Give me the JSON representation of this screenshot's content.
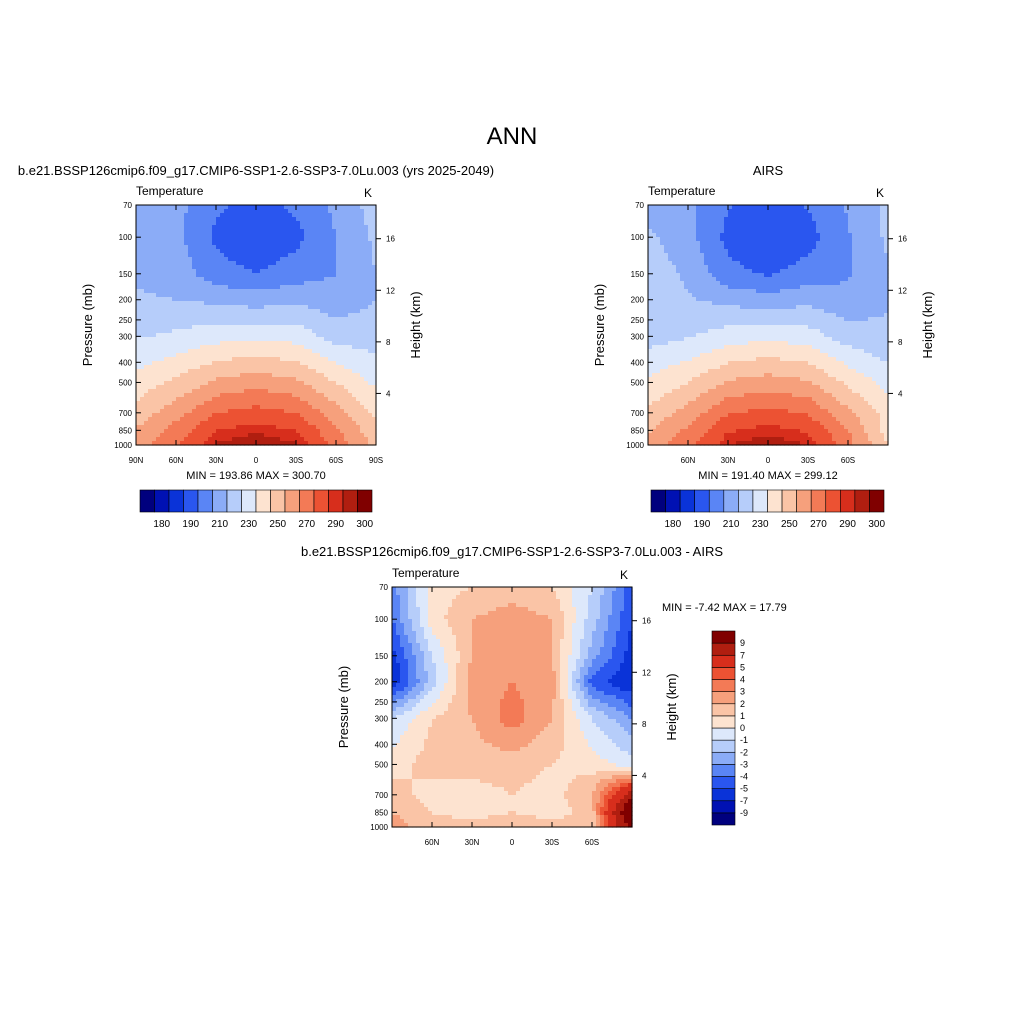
{
  "page": {
    "title": "ANN"
  },
  "palettes": {
    "abs": [
      "#00007e",
      "#0011b3",
      "#0a33d8",
      "#2a56ef",
      "#5a85f5",
      "#8bacf7",
      "#b6cdfa",
      "#dde8fb",
      "#fde3d0",
      "#fac4a6",
      "#f6a07c",
      "#f37a56",
      "#ec5233",
      "#d72e1c",
      "#b01e10",
      "#800000"
    ],
    "diff": [
      "#00007e",
      "#0011b3",
      "#0a33d8",
      "#2a56ef",
      "#5a85f5",
      "#8bacf7",
      "#b6cdfa",
      "#dde8fb",
      "#fde3d0",
      "#fac4a6",
      "#f6a07c",
      "#f37a56",
      "#ec5233",
      "#d72e1c",
      "#b01e10",
      "#800000"
    ]
  },
  "panels": [
    {
      "id": "model",
      "title": "b.e21.BSSP126cmip6.f09_g17.CMIP6-SSP1-2.6-SSP3-7.0Lu.003 (yrs 2025-2049)",
      "var_label": "Temperature",
      "units": "K",
      "ylabel": "Pressure (mb)",
      "y2label": "Height (km)",
      "stats": "MIN = 193.86  MAX = 300.70",
      "x_ticks": [
        "90N",
        "60N",
        "30N",
        "0",
        "30S",
        "60S",
        "90S"
      ],
      "y_ticks": [
        "70",
        "100",
        "150",
        "200",
        "250",
        "300",
        "400",
        "500",
        "700",
        "850",
        "1000"
      ],
      "y2_ticks": [
        "16",
        "12",
        "8",
        "4"
      ],
      "cb_labels": [
        "180",
        "190",
        "210",
        "230",
        "250",
        "270",
        "290",
        "300"
      ]
    },
    {
      "id": "obs",
      "title": "AIRS",
      "var_label": "Temperature",
      "units": "K",
      "ylabel": "Pressure (mb)",
      "y2label": "Height (km)",
      "stats": "MIN = 191.40  MAX = 299.12",
      "x_ticks": [
        "60N",
        "30N",
        "0",
        "30S",
        "60S"
      ],
      "y_ticks": [
        "70",
        "100",
        "150",
        "200",
        "250",
        "300",
        "400",
        "500",
        "700",
        "850",
        "1000"
      ],
      "y2_ticks": [
        "16",
        "12",
        "8",
        "4"
      ],
      "cb_labels": [
        "180",
        "190",
        "210",
        "230",
        "250",
        "270",
        "290",
        "300"
      ]
    },
    {
      "id": "diff",
      "title": "b.e21.BSSP126cmip6.f09_g17.CMIP6-SSP1-2.6-SSP3-7.0Lu.003 - AIRS",
      "var_label": "Temperature",
      "units": "K",
      "ylabel": "Pressure (mb)",
      "y2label": "Height (km)",
      "stats": "MIN =  -7.42  MAX =  17.79",
      "x_ticks": [
        "60N",
        "30N",
        "0",
        "30S",
        "60S"
      ],
      "y_ticks": [
        "70",
        "100",
        "150",
        "200",
        "250",
        "300",
        "400",
        "500",
        "700",
        "850",
        "1000"
      ],
      "y2_ticks": [
        "16",
        "12",
        "8",
        "4"
      ],
      "cb_labels": [
        "9",
        "7",
        "5",
        "4",
        "3",
        "2",
        "1",
        "0",
        "-1",
        "-2",
        "-3",
        "-4",
        "-5",
        "-7",
        "-9"
      ]
    }
  ],
  "chart_data": [
    {
      "type": "heatmap",
      "title": "b.e21.BSSP126cmip6.f09_g17.CMIP6-SSP1-2.6-SSP3-7.0Lu.003 (yrs 2025-2049)",
      "subtitle": "Temperature",
      "units": "K",
      "xlabel": "",
      "ylabel": "Pressure (mb)",
      "y2label": "Height (km)",
      "xlim": [
        "90N",
        "90S"
      ],
      "ylim": [
        1000,
        70
      ],
      "y_scale": "log",
      "levels": [
        180,
        185,
        190,
        200,
        210,
        220,
        230,
        240,
        250,
        260,
        270,
        280,
        290,
        295,
        300
      ],
      "min": 193.86,
      "max": 300.7,
      "field": {
        "lat": [
          90,
          60,
          30,
          0,
          -30,
          -60,
          -90
        ],
        "plev": [
          70,
          100,
          150,
          200,
          300,
          500,
          700,
          850,
          1000
        ],
        "temp": [
          [
            218,
            213,
            202,
            196,
            202,
            212,
            225
          ],
          [
            218,
            213,
            198,
            192,
            197,
            210,
            222
          ],
          [
            219,
            216,
            204,
            200,
            205,
            210,
            220
          ],
          [
            221,
            220,
            218,
            215,
            218,
            214,
            220
          ],
          [
            229,
            232,
            236,
            238,
            236,
            226,
            225
          ],
          [
            244,
            252,
            262,
            266,
            262,
            250,
            238
          ],
          [
            254,
            266,
            280,
            284,
            280,
            264,
            248
          ],
          [
            261,
            274,
            290,
            294,
            290,
            272,
            253
          ],
          [
            265,
            280,
            296,
            300,
            296,
            276,
            257
          ]
        ]
      }
    },
    {
      "type": "heatmap",
      "title": "AIRS",
      "subtitle": "Temperature",
      "units": "K",
      "xlabel": "",
      "ylabel": "Pressure (mb)",
      "y2label": "Height (km)",
      "xlim": [
        "90N",
        "90S"
      ],
      "ylim": [
        1000,
        70
      ],
      "y_scale": "log",
      "levels": [
        180,
        185,
        190,
        200,
        210,
        220,
        230,
        240,
        250,
        260,
        270,
        280,
        290,
        295,
        300
      ],
      "min": 191.4,
      "max": 299.12,
      "field": {
        "lat": [
          90,
          60,
          30,
          0,
          -30,
          -60,
          -90
        ],
        "plev": [
          70,
          100,
          150,
          200,
          300,
          500,
          700,
          850,
          1000
        ],
        "temp": [
          [
            216,
            212,
            201,
            195,
            201,
            211,
            222
          ],
          [
            222,
            214,
            197,
            191,
            196,
            209,
            222
          ],
          [
            226,
            218,
            203,
            199,
            204,
            209,
            219
          ],
          [
            227,
            221,
            217,
            214,
            217,
            213,
            219
          ],
          [
            226,
            229,
            235,
            237,
            235,
            225,
            222
          ],
          [
            242,
            250,
            261,
            265,
            261,
            248,
            236
          ],
          [
            252,
            264,
            279,
            283,
            279,
            262,
            246
          ],
          [
            259,
            272,
            289,
            293,
            289,
            270,
            246
          ],
          [
            263,
            278,
            295,
            299,
            295,
            274,
            250
          ]
        ]
      }
    },
    {
      "type": "heatmap",
      "title": "b.e21.BSSP126cmip6.f09_g17.CMIP6-SSP1-2.6-SSP3-7.0Lu.003 - AIRS",
      "subtitle": "Temperature",
      "units": "K",
      "xlabel": "",
      "ylabel": "Pressure (mb)",
      "y2label": "Height (km)",
      "xlim": [
        "90N",
        "90S"
      ],
      "ylim": [
        1000,
        70
      ],
      "y_scale": "log",
      "levels": [
        -9,
        -7,
        -5,
        -4,
        -3,
        -2,
        -1,
        0,
        1,
        2,
        3,
        4,
        5,
        7,
        9
      ],
      "min": -7.42,
      "max": 17.79,
      "field": {
        "lat": [
          90,
          60,
          30,
          0,
          -30,
          -60,
          -90
        ],
        "plev": [
          70,
          100,
          150,
          200,
          300,
          500,
          700,
          850,
          1000
        ],
        "temp": [
          [
            -3.5,
            0.5,
            1.0,
            1.5,
            1.0,
            -1.0,
            -4.5
          ],
          [
            -4.0,
            0.5,
            2.0,
            2.5,
            2.0,
            -1.5,
            -5.0
          ],
          [
            -5.5,
            -1.0,
            2.0,
            2.5,
            2.0,
            -2.5,
            -5.5
          ],
          [
            -6.0,
            -1.5,
            2.5,
            3.0,
            2.5,
            -4.5,
            -6.0
          ],
          [
            -1.0,
            1.0,
            2.0,
            3.5,
            2.0,
            -1.0,
            -3.0
          ],
          [
            0.5,
            1.5,
            1.5,
            1.5,
            1.0,
            0.5,
            -0.5
          ],
          [
            1.5,
            0.5,
            0.5,
            1.0,
            0.5,
            2.0,
            8.0
          ],
          [
            2.0,
            1.0,
            0.5,
            1.0,
            0.5,
            1.5,
            12.0
          ],
          [
            2.5,
            1.5,
            1.5,
            2.0,
            1.5,
            1.0,
            10.0
          ]
        ]
      }
    }
  ]
}
